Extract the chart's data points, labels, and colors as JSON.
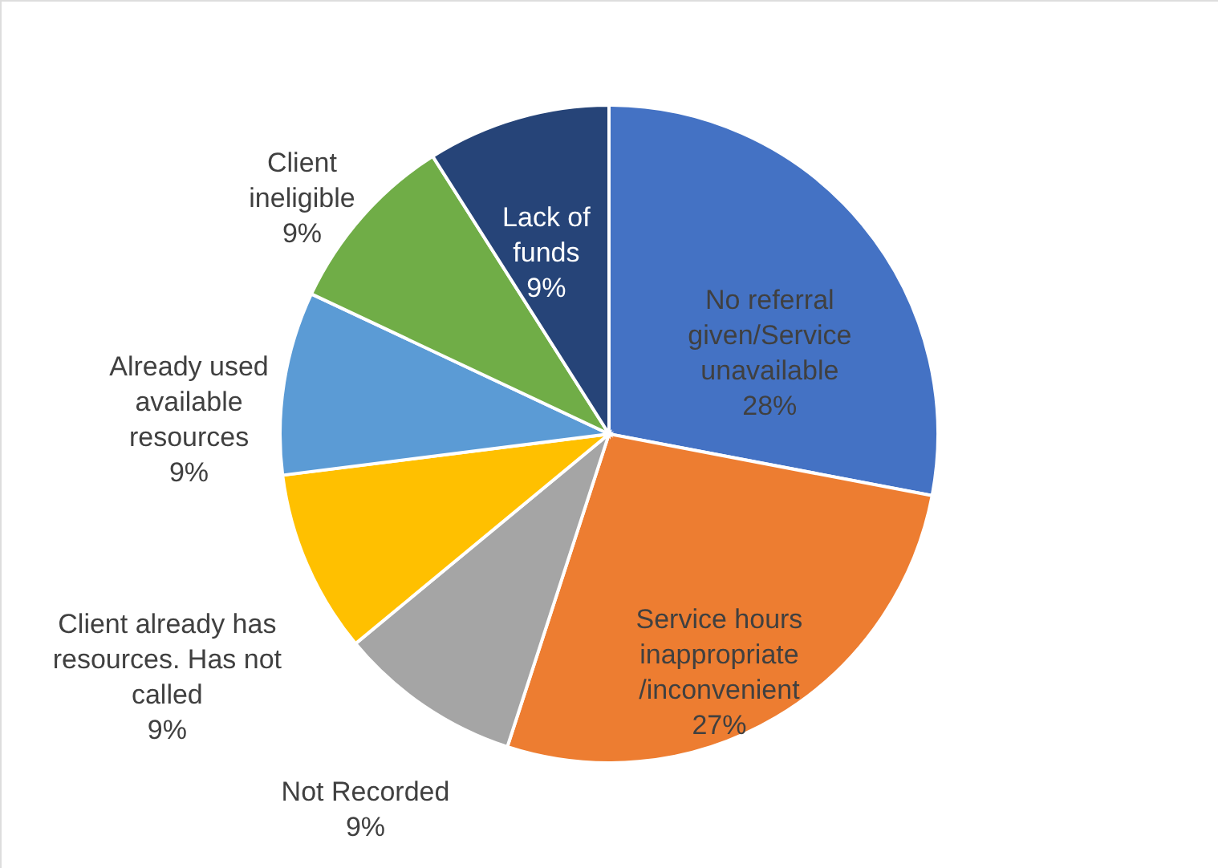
{
  "chart_data": {
    "type": "pie",
    "categories": [
      "No referral given/Service unavailable",
      "Service hours inappropriate /inconvenient",
      "Not Recorded",
      "Client already has resources. Has not called",
      "Already used available resources",
      "Client ineligible",
      "Lack of funds"
    ],
    "values": [
      28,
      27,
      9,
      9,
      9,
      9,
      9
    ],
    "colors": [
      "#4472c4",
      "#ed7d31",
      "#a5a5a5",
      "#ffc000",
      "#5b9bd5",
      "#70ad47",
      "#264478"
    ],
    "value_labels": [
      "28%",
      "27%",
      "9%",
      "9%",
      "9%",
      "9%",
      "9%"
    ]
  }
}
